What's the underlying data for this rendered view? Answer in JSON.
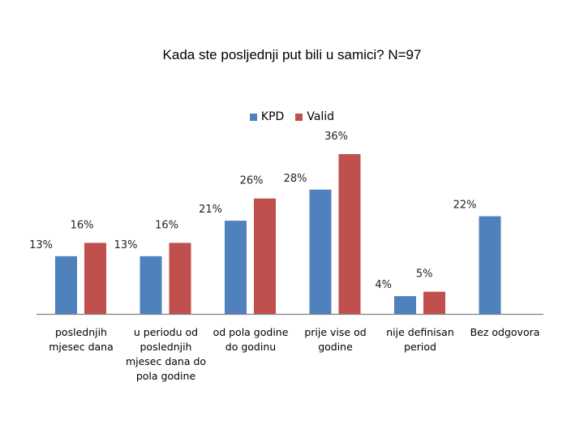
{
  "chart_data": {
    "type": "bar",
    "title": "Kada ste posljednji put bili u samici? N=97",
    "categories": [
      "poslednjih\nmjesec dana",
      "u periodu od\nposlednjih\nmjesec dana do\npola godine",
      "od pola godine\ndo godinu",
      "prije vise od\ngodine",
      "nije definisan\nperiod",
      "Bez odgovora"
    ],
    "series": [
      {
        "name": "KPD",
        "color": "#4f81bd",
        "values": [
          13,
          13,
          21,
          28,
          4,
          22
        ],
        "labels": [
          "13%",
          "13%",
          "21%",
          "28%",
          "4%",
          "22%"
        ]
      },
      {
        "name": "Valid",
        "color": "#c0504d",
        "values": [
          16,
          16,
          26,
          36,
          5,
          null
        ],
        "labels": [
          "16%",
          "16%",
          "26%",
          "36%",
          "5%",
          ""
        ]
      }
    ],
    "ylim": [
      0,
      36
    ],
    "xlabel": "",
    "ylabel": "",
    "grid": false,
    "legend": "top-center"
  }
}
